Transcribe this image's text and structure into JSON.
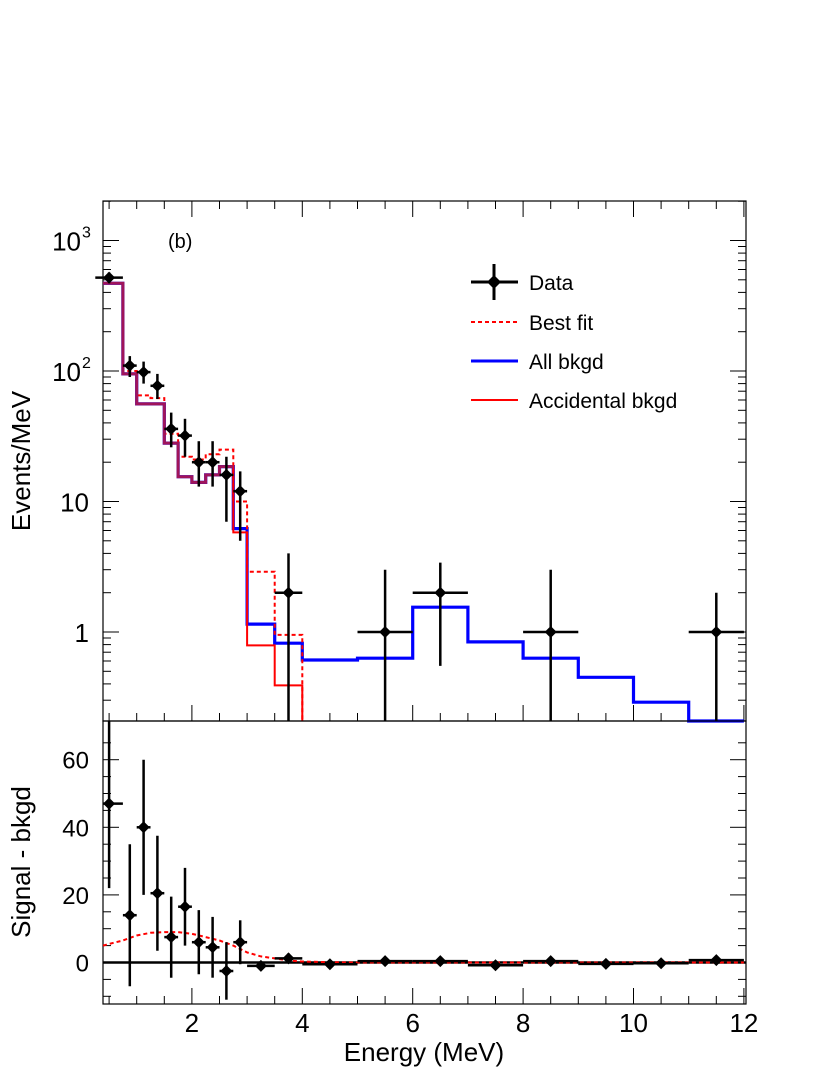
{
  "chart_data": [
    {
      "type": "line",
      "panel_label": "(b)",
      "ylabel": "Events/MeV",
      "yscale": "log",
      "xlim": [
        0.25,
        12
      ],
      "ylim": [
        0.22,
        2000
      ],
      "yticks": [
        {
          "value": 1000,
          "label": "10",
          "exp": "3"
        },
        {
          "value": 100,
          "label": "10",
          "exp": "2"
        },
        {
          "value": 10,
          "label": "10",
          "exp": ""
        },
        {
          "value": 1,
          "label": "1",
          "exp": ""
        }
      ],
      "legend": {
        "placement": "top-right",
        "entries": [
          {
            "label": "Data",
            "style": "marker"
          },
          {
            "label": "Best fit",
            "style": "dashed",
            "color": "#ff0000"
          },
          {
            "label": "All bkgd",
            "style": "solid-thick",
            "color": "#0000ff"
          },
          {
            "label": "Accidental bkgd",
            "style": "solid",
            "color": "#ff0000"
          }
        ]
      },
      "data_points": [
        {
          "x": 0.5,
          "xerr": 0.25,
          "y": 520,
          "ylo": 470,
          "yhi": 570
        },
        {
          "x": 0.875,
          "xerr": 0.125,
          "y": 110,
          "ylo": 90,
          "yhi": 130
        },
        {
          "x": 1.125,
          "xerr": 0.125,
          "y": 98,
          "ylo": 80,
          "yhi": 118
        },
        {
          "x": 1.375,
          "xerr": 0.125,
          "y": 77,
          "ylo": 61,
          "yhi": 95
        },
        {
          "x": 1.625,
          "xerr": 0.125,
          "y": 36,
          "ylo": 26,
          "yhi": 48
        },
        {
          "x": 1.875,
          "xerr": 0.125,
          "y": 32,
          "ylo": 22,
          "yhi": 43
        },
        {
          "x": 2.125,
          "xerr": 0.125,
          "y": 20,
          "ylo": 13,
          "yhi": 29
        },
        {
          "x": 2.375,
          "xerr": 0.125,
          "y": 20,
          "ylo": 13,
          "yhi": 29
        },
        {
          "x": 2.625,
          "xerr": 0.125,
          "y": 16,
          "ylo": 7,
          "yhi": 22
        },
        {
          "x": 2.875,
          "xerr": 0.125,
          "y": 12,
          "ylo": 5,
          "yhi": 17
        },
        {
          "x": 3.75,
          "xerr": 0.25,
          "y": 2,
          "ylo": 0.1,
          "yhi": 4
        },
        {
          "x": 5.5,
          "xerr": 0.5,
          "y": 1,
          "ylo": 0.1,
          "yhi": 3
        },
        {
          "x": 6.5,
          "xerr": 0.5,
          "y": 2,
          "ylo": 0.55,
          "yhi": 3.4
        },
        {
          "x": 8.5,
          "xerr": 0.5,
          "y": 1,
          "ylo": 0.1,
          "yhi": 3
        },
        {
          "x": 11.5,
          "xerr": 0.5,
          "y": 1,
          "ylo": 0.1,
          "yhi": 2
        }
      ],
      "series": [
        {
          "name": "All bkgd",
          "color": "#0000ff",
          "edges": [
            0.25,
            0.75,
            1.0,
            1.25,
            1.5,
            1.75,
            2.0,
            2.25,
            2.5,
            2.75,
            3.0,
            3.5,
            4.0,
            5.0,
            6.0,
            7.0,
            8.0,
            9.0,
            10.0,
            11.0,
            12.0
          ],
          "values": [
            470,
            95,
            56,
            56,
            28,
            15.5,
            14,
            16,
            18.5,
            6.2,
            1.15,
            0.82,
            0.61,
            0.63,
            1.55,
            0.84,
            0.63,
            0.45,
            0.29,
            0.2
          ]
        },
        {
          "name": "Accidental bkgd",
          "color": "#ff0000",
          "edges": [
            0.25,
            0.75,
            1.0,
            1.25,
            1.5,
            1.75,
            2.0,
            2.25,
            2.5,
            2.75,
            3.0,
            3.5,
            4.0
          ],
          "values": [
            470,
            95,
            56,
            56,
            28,
            15.5,
            14,
            16,
            18.5,
            5.8,
            0.79,
            0.39
          ]
        },
        {
          "name": "Best fit",
          "color": "#ff0000",
          "dashed": true,
          "edges": [
            0.25,
            0.75,
            1.0,
            1.25,
            1.5,
            1.75,
            2.0,
            2.25,
            2.5,
            2.75,
            3.0,
            3.5,
            4.0
          ],
          "values": [
            470,
            100,
            65,
            62,
            33,
            22,
            21,
            23,
            25,
            10,
            2.9,
            0.95
          ]
        }
      ]
    },
    {
      "type": "scatter",
      "xlabel": "Energy (MeV)",
      "ylabel": "Signal - bkgd",
      "xlim": [
        0.25,
        12
      ],
      "ylim": [
        -12,
        67
      ],
      "xticks": [
        2,
        4,
        6,
        8,
        10,
        12
      ],
      "yticks": [
        0,
        20,
        40,
        60
      ],
      "zero_line": true,
      "points": [
        {
          "x": 0.5,
          "xerr": 0.25,
          "y": 47,
          "yerr": 25
        },
        {
          "x": 0.875,
          "xerr": 0.125,
          "y": 14,
          "yerr": 21
        },
        {
          "x": 1.125,
          "xerr": 0.125,
          "y": 40,
          "yerr": 20
        },
        {
          "x": 1.375,
          "xerr": 0.125,
          "y": 20.5,
          "yerr": 17
        },
        {
          "x": 1.625,
          "xerr": 0.125,
          "y": 7.5,
          "yerr": 12
        },
        {
          "x": 1.875,
          "xerr": 0.125,
          "y": 16.5,
          "yerr": 11.5
        },
        {
          "x": 2.125,
          "xerr": 0.125,
          "y": 6,
          "yerr": 9.5
        },
        {
          "x": 2.375,
          "xerr": 0.125,
          "y": 4.5,
          "yerr": 9
        },
        {
          "x": 2.625,
          "xerr": 0.125,
          "y": -2.5,
          "yerr": 8.5
        },
        {
          "x": 2.875,
          "xerr": 0.125,
          "y": 6,
          "yerr": 6.5
        },
        {
          "x": 3.25,
          "xerr": 0.25,
          "y": -1,
          "yerr": 0.8
        },
        {
          "x": 3.75,
          "xerr": 0.25,
          "y": 1.2,
          "yerr": 1.5
        },
        {
          "x": 4.5,
          "xerr": 0.5,
          "y": -0.5,
          "yerr": 0.8
        },
        {
          "x": 5.5,
          "xerr": 0.5,
          "y": 0.4,
          "yerr": 0.8
        },
        {
          "x": 6.5,
          "xerr": 0.5,
          "y": 0.4,
          "yerr": 0.8
        },
        {
          "x": 7.5,
          "xerr": 0.5,
          "y": -0.8,
          "yerr": 0.8
        },
        {
          "x": 8.5,
          "xerr": 0.5,
          "y": 0.4,
          "yerr": 0.8
        },
        {
          "x": 9.5,
          "xerr": 0.5,
          "y": -0.4,
          "yerr": 0.8
        },
        {
          "x": 10.5,
          "xerr": 0.5,
          "y": -0.2,
          "yerr": 0.8
        },
        {
          "x": 11.5,
          "xerr": 0.5,
          "y": 0.7,
          "yerr": 0.8
        }
      ],
      "fit_curve": {
        "color": "#ff0000",
        "dashed": true,
        "x": [
          0.25,
          0.5,
          0.75,
          1.0,
          1.25,
          1.5,
          1.75,
          2.0,
          2.25,
          2.5,
          2.75,
          3.0,
          3.25,
          3.5,
          3.75,
          4.0,
          4.5,
          5,
          6,
          7,
          8,
          9,
          10,
          11,
          12
        ],
        "y": [
          5,
          5.5,
          6.5,
          8,
          8.8,
          9,
          9,
          8.5,
          7.5,
          6.5,
          5,
          3,
          1.8,
          1.2,
          0.6,
          0.3,
          0.1,
          0,
          0,
          0,
          0,
          0,
          0,
          0,
          0
        ]
      }
    }
  ]
}
